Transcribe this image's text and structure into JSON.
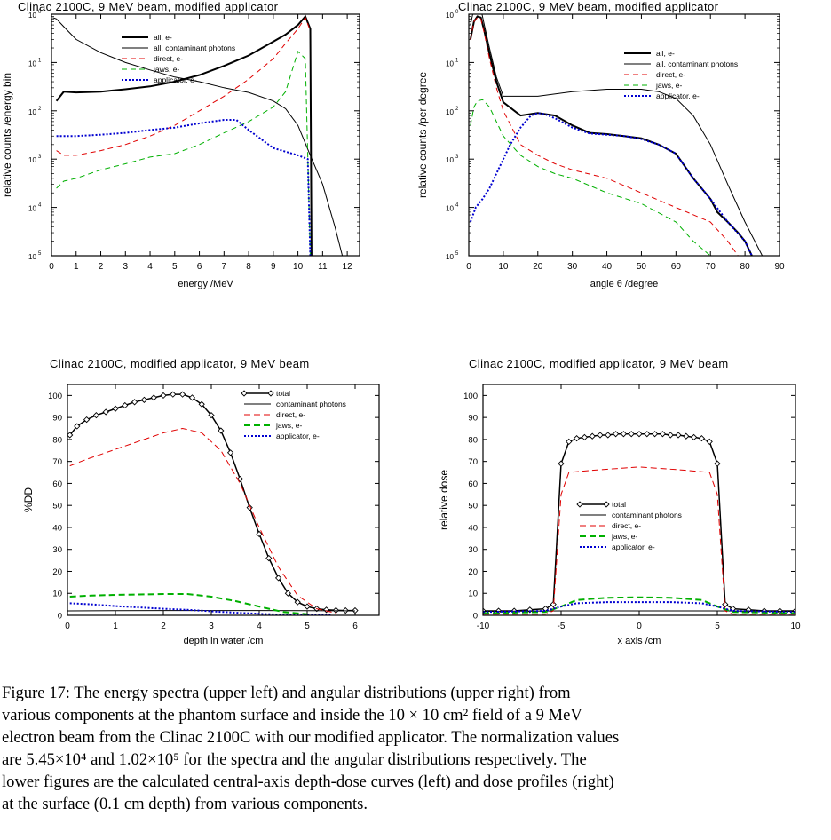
{
  "chart_data": [
    {
      "type": "line",
      "title": "Clinac 2100C, 9 MeV beam, modified applicator",
      "xlabel": "energy /MeV",
      "ylabel": "relative counts /energy bin",
      "xlim": [
        0,
        12.5
      ],
      "ylim": [
        1e-05,
        1
      ],
      "yscale": "log",
      "xticks": [
        0,
        1,
        2,
        3,
        4,
        5,
        6,
        7,
        8,
        9,
        10,
        11,
        12
      ],
      "ytick_labels": [
        {
          "base": "10",
          "exp": "0"
        },
        {
          "base": "10",
          "exp": "1"
        },
        {
          "base": "10",
          "exp": "2"
        },
        {
          "base": "10",
          "exp": "3"
        },
        {
          "base": "10",
          "exp": "4"
        },
        {
          "base": "10",
          "exp": "5"
        }
      ],
      "legend_position": "top-right",
      "series": [
        {
          "name": "all, e-",
          "color": "#000000",
          "dash": "solid",
          "width": 2,
          "x": [
            0.2,
            0.5,
            1,
            2,
            3,
            4,
            5,
            6,
            7,
            8,
            9,
            9.5,
            10,
            10.3,
            10.5,
            10.55
          ],
          "y": [
            0.016,
            0.025,
            0.024,
            0.025,
            0.028,
            0.032,
            0.04,
            0.055,
            0.085,
            0.14,
            0.27,
            0.38,
            0.6,
            0.9,
            0.5,
            1e-05
          ]
        },
        {
          "name": "all, contaminant photons",
          "color": "#000000",
          "dash": "solid",
          "width": 1,
          "x": [
            0.05,
            0.2,
            0.5,
            1,
            2,
            3,
            4,
            5,
            6,
            7,
            8,
            9,
            9.5,
            10,
            10.5,
            11,
            11.5,
            11.8
          ],
          "y": [
            0.85,
            0.8,
            0.55,
            0.3,
            0.16,
            0.1,
            0.07,
            0.05,
            0.04,
            0.03,
            0.024,
            0.016,
            0.011,
            0.005,
            0.0012,
            0.0003,
            4e-05,
            1e-05
          ]
        },
        {
          "name": "direct, e-",
          "color": "#e00000",
          "dash": "6,4",
          "width": 1,
          "x": [
            0.2,
            0.5,
            1,
            2,
            3,
            4,
            5,
            6,
            7,
            8,
            9,
            9.5,
            10,
            10.3,
            10.5
          ],
          "y": [
            0.0015,
            0.0012,
            0.0012,
            0.0015,
            0.002,
            0.003,
            0.005,
            0.01,
            0.02,
            0.045,
            0.12,
            0.25,
            0.5,
            0.85,
            0.45
          ]
        },
        {
          "name": "jaws, e-",
          "color": "#00b000",
          "dash": "6,4",
          "width": 1,
          "x": [
            0.2,
            0.5,
            1,
            2,
            3,
            4,
            5,
            6,
            7,
            8,
            9,
            9.5,
            10,
            10.3,
            10.5
          ],
          "y": [
            0.00025,
            0.00035,
            0.0004,
            0.0006,
            0.0008,
            0.0011,
            0.0013,
            0.002,
            0.0035,
            0.006,
            0.012,
            0.025,
            0.17,
            0.12,
            1e-05
          ]
        },
        {
          "name": "applicator, e-",
          "color": "#0000d0",
          "dash": "2,2",
          "width": 2,
          "x": [
            0.2,
            0.5,
            1,
            2,
            3,
            4,
            5,
            6,
            7,
            7.5,
            8,
            9,
            10,
            10.4,
            10.5
          ],
          "y": [
            0.003,
            0.003,
            0.003,
            0.0032,
            0.0035,
            0.004,
            0.0045,
            0.0055,
            0.0065,
            0.0065,
            0.004,
            0.0017,
            0.0012,
            0.001,
            1e-05
          ]
        }
      ]
    },
    {
      "type": "line",
      "title": "Clinac 2100C, 9 MeV beam, modified applicator",
      "xlabel": "angle θ /degree",
      "ylabel": "relative counts /per degree",
      "xlim": [
        0,
        90
      ],
      "ylim": [
        1e-05,
        1
      ],
      "yscale": "log",
      "xticks": [
        0,
        10,
        20,
        30,
        40,
        50,
        60,
        70,
        80,
        90
      ],
      "ytick_labels": [
        {
          "base": "10",
          "exp": "0"
        },
        {
          "base": "10",
          "exp": "1"
        },
        {
          "base": "10",
          "exp": "2"
        },
        {
          "base": "10",
          "exp": "3"
        },
        {
          "base": "10",
          "exp": "4"
        },
        {
          "base": "10",
          "exp": "5"
        }
      ],
      "legend_position": "top-right",
      "series": [
        {
          "name": "all, e-",
          "color": "#000000",
          "dash": "solid",
          "width": 2,
          "x": [
            0.5,
            1.5,
            2.5,
            3.5,
            4.5,
            6,
            8,
            10,
            15,
            20,
            25,
            30,
            35,
            40,
            45,
            50,
            55,
            60,
            65,
            70,
            72,
            75,
            78,
            80,
            82
          ],
          "y": [
            0.3,
            0.7,
            0.9,
            0.85,
            0.45,
            0.15,
            0.04,
            0.015,
            0.008,
            0.009,
            0.008,
            0.005,
            0.0035,
            0.0033,
            0.003,
            0.0027,
            0.002,
            0.0013,
            0.0004,
            0.00015,
            8e-05,
            5e-05,
            3e-05,
            2e-05,
            1e-05
          ]
        },
        {
          "name": "all, contaminant photons",
          "color": "#000000",
          "dash": "solid",
          "width": 1,
          "x": [
            0.5,
            1.5,
            2.5,
            3.5,
            4.5,
            6,
            8,
            10,
            20,
            30,
            40,
            50,
            55,
            60,
            65,
            70,
            75,
            80,
            85,
            88
          ],
          "y": [
            0.6,
            1.3,
            1.6,
            1.3,
            0.6,
            0.2,
            0.05,
            0.02,
            0.02,
            0.025,
            0.028,
            0.028,
            0.025,
            0.018,
            0.008,
            0.002,
            0.0003,
            5e-05,
            1e-05,
            1e-05
          ]
        },
        {
          "name": "direct, e-",
          "color": "#e00000",
          "dash": "6,4",
          "width": 1,
          "x": [
            0.5,
            1.5,
            2.5,
            3.5,
            4.5,
            6,
            8,
            10,
            15,
            20,
            25,
            30,
            40,
            50,
            60,
            70,
            75,
            78
          ],
          "y": [
            0.3,
            0.7,
            0.85,
            0.8,
            0.4,
            0.12,
            0.03,
            0.01,
            0.002,
            0.0012,
            0.0008,
            0.0006,
            0.0004,
            0.0002,
            0.0001,
            5e-05,
            2e-05,
            1e-05
          ]
        },
        {
          "name": "jaws, e-",
          "color": "#00b000",
          "dash": "6,4",
          "width": 1,
          "x": [
            0.5,
            1.5,
            2.5,
            4,
            6,
            8,
            10,
            15,
            20,
            25,
            30,
            40,
            50,
            60,
            65,
            70,
            72
          ],
          "y": [
            0.005,
            0.012,
            0.016,
            0.017,
            0.012,
            0.006,
            0.003,
            0.0012,
            0.0007,
            0.0005,
            0.0004,
            0.0002,
            0.00012,
            5e-05,
            2e-05,
            1e-05,
            1e-05
          ]
        },
        {
          "name": "applicator, e-",
          "color": "#0000d0",
          "dash": "2,2",
          "width": 2,
          "x": [
            0.5,
            2,
            4,
            6,
            8,
            10,
            12,
            15,
            18,
            20,
            22,
            25,
            30,
            35,
            40,
            45,
            50,
            55,
            60,
            65,
            70,
            75,
            80,
            82
          ],
          "y": [
            5e-05,
            0.0001,
            0.00015,
            0.00025,
            0.0005,
            0.001,
            0.002,
            0.0045,
            0.008,
            0.009,
            0.0085,
            0.007,
            0.0045,
            0.0034,
            0.0032,
            0.003,
            0.0026,
            0.002,
            0.0013,
            0.0004,
            0.00015,
            5e-05,
            2e-05,
            1e-05
          ]
        }
      ]
    },
    {
      "type": "line",
      "title": "Clinac 2100C, modified applicator, 9 MeV beam",
      "xlabel": "depth in water /cm",
      "ylabel": "%DD",
      "xlim": [
        0,
        6.5
      ],
      "ylim": [
        0,
        105
      ],
      "xticks": [
        0,
        1,
        2,
        3,
        4,
        5,
        6
      ],
      "yticks": [
        0,
        10,
        20,
        30,
        40,
        50,
        60,
        70,
        80,
        90,
        100
      ],
      "legend_position": "top-right",
      "series": [
        {
          "name": "total",
          "color": "#000000",
          "dash": "solid",
          "width": 1.5,
          "marker": "diamond",
          "x": [
            0.05,
            0.2,
            0.4,
            0.6,
            0.8,
            1.0,
            1.2,
            1.4,
            1.6,
            1.8,
            2.0,
            2.2,
            2.4,
            2.6,
            2.8,
            3.0,
            3.2,
            3.4,
            3.6,
            3.8,
            4.0,
            4.2,
            4.4,
            4.6,
            4.8,
            5.0,
            5.2,
            5.4,
            5.6,
            5.8,
            6.0
          ],
          "y": [
            82,
            86,
            89,
            91,
            92.5,
            94,
            95.5,
            97,
            98,
            99,
            100,
            100.5,
            100.5,
            99,
            96,
            91,
            84,
            74,
            62,
            49,
            37,
            26,
            17,
            10,
            6,
            4,
            3,
            2.5,
            2.3,
            2.2,
            2.2
          ]
        },
        {
          "name": "contaminant photons",
          "color": "#000000",
          "dash": "solid",
          "width": 1,
          "x": [
            0,
            1,
            2,
            3,
            4,
            5,
            6
          ],
          "y": [
            2,
            2.1,
            2.2,
            2.2,
            2.2,
            2.1,
            2
          ]
        },
        {
          "name": "direct, e-",
          "color": "#e00000",
          "dash": "7,4",
          "width": 1,
          "x": [
            0.05,
            0.4,
            0.8,
            1.2,
            1.6,
            2.0,
            2.4,
            2.8,
            3.2,
            3.6,
            4.0,
            4.4,
            4.8,
            5.2,
            5.6
          ],
          "y": [
            68,
            71,
            74,
            77,
            80,
            83,
            85,
            83,
            75,
            60,
            40,
            22,
            9,
            3,
            1
          ]
        },
        {
          "name": "jaws, e-",
          "color": "#00b000",
          "dash": "7,4",
          "width": 2,
          "x": [
            0.05,
            0.5,
            1,
            1.5,
            2,
            2.5,
            3,
            3.5,
            4,
            4.5,
            5
          ],
          "y": [
            8.5,
            9,
            9.3,
            9.5,
            9.7,
            9.7,
            8.5,
            6.5,
            4,
            1.5,
            0.5
          ]
        },
        {
          "name": "applicator, e-",
          "color": "#0000d0",
          "dash": "2,2",
          "width": 2,
          "x": [
            0.05,
            0.5,
            1,
            1.5,
            2,
            2.5,
            3,
            3.5,
            4,
            4.5,
            5,
            5.5
          ],
          "y": [
            5.5,
            5,
            4.2,
            3.6,
            3,
            2.5,
            1.8,
            1.2,
            0.7,
            0.3,
            0.1,
            0
          ]
        }
      ]
    },
    {
      "type": "line",
      "title": "Clinac 2100C, modified applicator, 9 MeV beam",
      "xlabel": "x axis /cm",
      "ylabel": "relative dose",
      "xlim": [
        -10,
        10
      ],
      "ylim": [
        0,
        105
      ],
      "xticks": [
        -10,
        -5,
        0,
        5,
        10
      ],
      "yticks": [
        0,
        10,
        20,
        30,
        40,
        50,
        60,
        70,
        80,
        90,
        100
      ],
      "legend_position": "center-left",
      "series": [
        {
          "name": "total",
          "color": "#000000",
          "dash": "solid",
          "width": 1.5,
          "marker": "diamond",
          "x": [
            -10,
            -9,
            -8,
            -7,
            -6,
            -5.5,
            -5,
            -4.5,
            -4,
            -3.5,
            -3,
            -2.5,
            -2,
            -1.5,
            -1,
            -0.5,
            0,
            0.5,
            1,
            1.5,
            2,
            2.5,
            3,
            3.5,
            4,
            4.5,
            5,
            5.5,
            6,
            7,
            8,
            9,
            10
          ],
          "y": [
            2,
            2,
            2,
            2.5,
            3,
            5,
            69,
            79,
            80.5,
            81,
            81.5,
            82,
            82,
            82.5,
            82.5,
            82.5,
            82.5,
            82.5,
            82.5,
            82.5,
            82,
            82,
            81.5,
            81,
            80.5,
            79,
            69,
            5,
            3,
            2.5,
            2,
            2,
            2
          ]
        },
        {
          "name": "contaminant photons",
          "color": "#000000",
          "dash": "solid",
          "width": 1,
          "x": [
            -10,
            -5,
            0,
            5,
            10
          ],
          "y": [
            1.8,
            2,
            2,
            2,
            1.8
          ]
        },
        {
          "name": "direct, e-",
          "color": "#e00000",
          "dash": "7,4",
          "width": 1,
          "x": [
            -10,
            -6,
            -5.5,
            -5,
            -4.5,
            -3,
            -1,
            0,
            1,
            3,
            4.5,
            5,
            5.5,
            6,
            10
          ],
          "y": [
            0.5,
            0.5,
            2,
            55,
            65,
            66,
            67,
            67.5,
            67,
            66,
            65,
            55,
            2,
            0.5,
            0.5
          ]
        },
        {
          "name": "jaws, e-",
          "color": "#00b000",
          "dash": "7,4",
          "width": 2,
          "x": [
            -10,
            -6,
            -5,
            -4,
            -2,
            0,
            2,
            4,
            5,
            6,
            10
          ],
          "y": [
            1,
            1.5,
            4,
            7,
            8,
            8.2,
            8,
            7,
            4,
            1.5,
            1
          ]
        },
        {
          "name": "applicator, e-",
          "color": "#0000d0",
          "dash": "2,2",
          "width": 2,
          "x": [
            -10,
            -6,
            -5,
            -4,
            -2,
            0,
            2,
            4,
            5,
            6,
            10
          ],
          "y": [
            1.5,
            2,
            4,
            5.5,
            6,
            6,
            6,
            5.5,
            4,
            2,
            1.5
          ]
        }
      ]
    }
  ],
  "caption": {
    "lines": [
      "Figure 17: The energy spectra (upper left) and angular distributions (upper right) from",
      "various components at the phantom surface and inside the 10 × 10 cm² field of a 9 MeV",
      "electron beam from the Clinac 2100C with our modified applicator. The normalization values",
      "are 5.45×10⁴ and 1.02×10⁵ for the spectra and the angular distributions respectively. The",
      "lower figures are the calculated central-axis depth-dose curves (left) and dose profiles (right)",
      "at the surface (0.1 cm depth) from various components."
    ]
  }
}
